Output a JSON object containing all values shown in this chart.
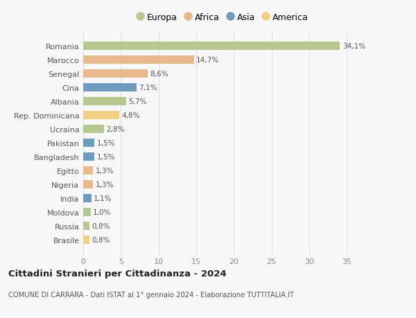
{
  "countries": [
    "Romania",
    "Marocco",
    "Senegal",
    "Cina",
    "Albania",
    "Rep. Dominicana",
    "Ucraina",
    "Pakistan",
    "Bangladesh",
    "Egitto",
    "Nigeria",
    "India",
    "Moldova",
    "Russia",
    "Brasile"
  ],
  "values": [
    34.1,
    14.7,
    8.6,
    7.1,
    5.7,
    4.8,
    2.8,
    1.5,
    1.5,
    1.3,
    1.3,
    1.1,
    1.0,
    0.8,
    0.8
  ],
  "labels": [
    "34,1%",
    "14,7%",
    "8,6%",
    "7,1%",
    "5,7%",
    "4,8%",
    "2,8%",
    "1,5%",
    "1,5%",
    "1,3%",
    "1,3%",
    "1,1%",
    "1,0%",
    "0,8%",
    "0,8%"
  ],
  "continents": [
    "Europa",
    "Africa",
    "Africa",
    "Asia",
    "Europa",
    "America",
    "Europa",
    "Asia",
    "Asia",
    "Africa",
    "Africa",
    "Asia",
    "Europa",
    "Europa",
    "America"
  ],
  "continent_colors": {
    "Europa": "#b5c98e",
    "Africa": "#e8b98a",
    "Asia": "#6e9cbf",
    "America": "#f0d080"
  },
  "legend_order": [
    "Europa",
    "Africa",
    "Asia",
    "America"
  ],
  "title": "Cittadini Stranieri per Cittadinanza - 2024",
  "subtitle": "COMUNE DI CARRARA - Dati ISTAT al 1° gennaio 2024 - Elaborazione TUTTITALIA.IT",
  "xlim": [
    0,
    37
  ],
  "xticks": [
    0,
    5,
    10,
    15,
    20,
    25,
    30,
    35
  ],
  "bg_color": "#f8f8f8",
  "grid_color": "#dddddd",
  "bar_height": 0.62
}
